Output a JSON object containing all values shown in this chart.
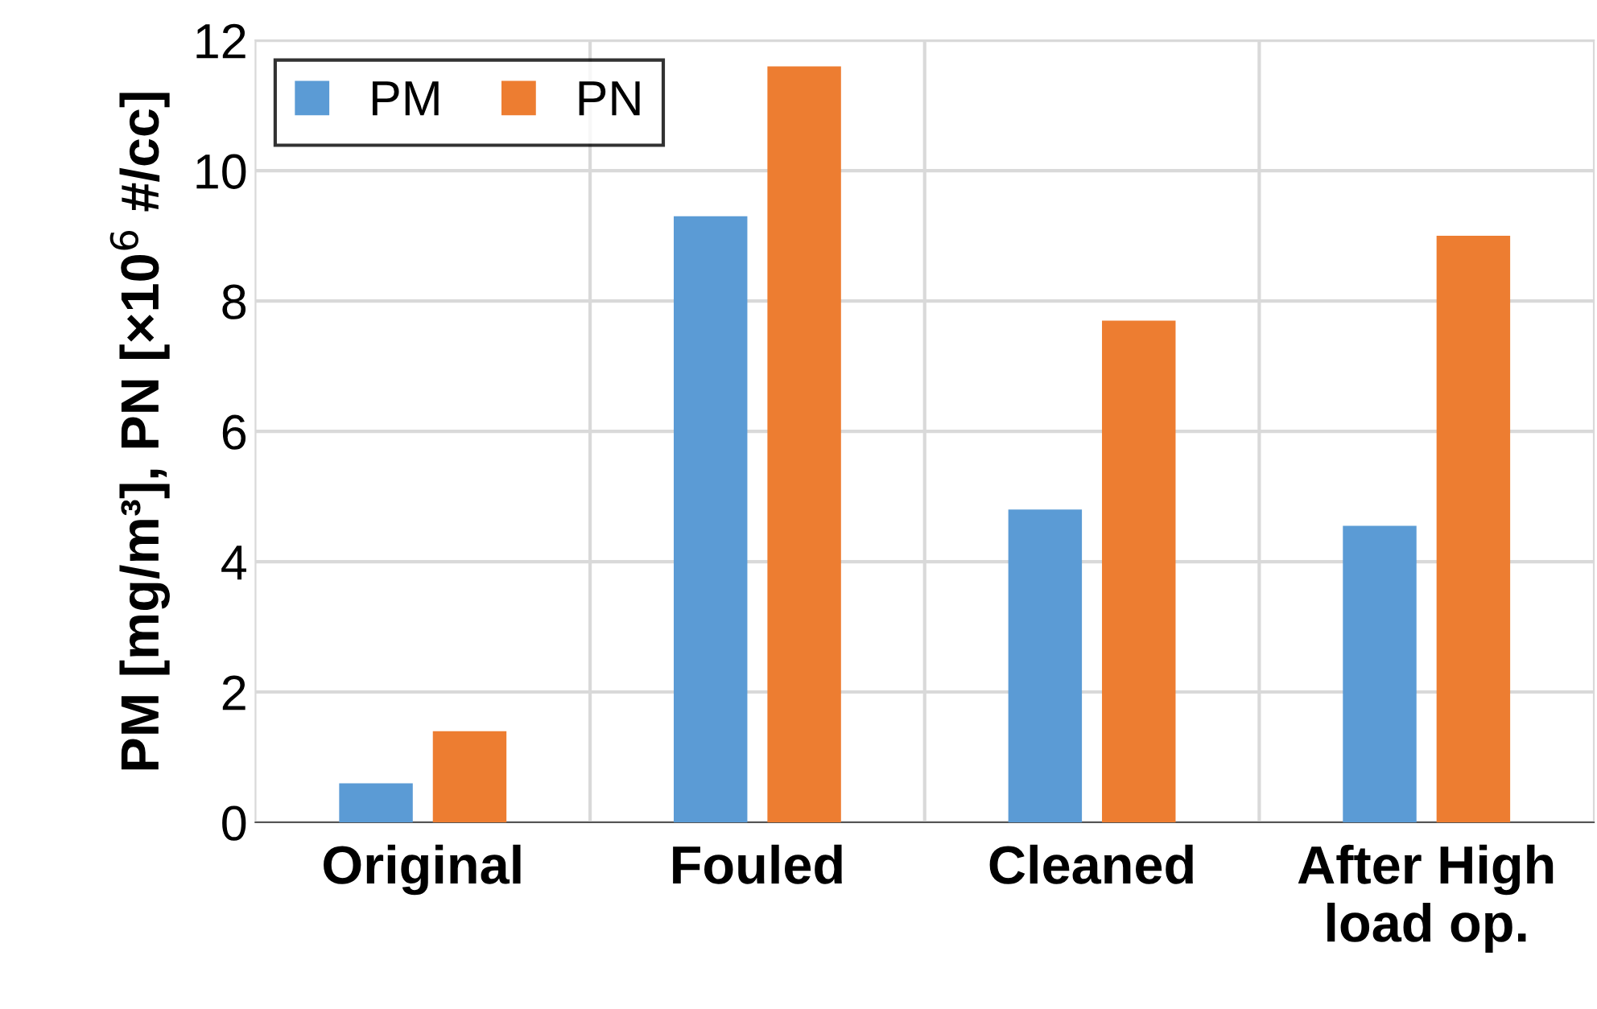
{
  "chart_data": {
    "type": "bar",
    "ylabel": "PM [mg/m³], PN [×10$^{6}$ #/cc]",
    "categories": [
      "Original",
      "Fouled",
      "Cleaned",
      "After High\nload op."
    ],
    "series": [
      {
        "name": "PM",
        "color": "#5b9bd5",
        "values": [
          0.6,
          9.3,
          4.8,
          4.55
        ]
      },
      {
        "name": "PN",
        "color": "#ed7d31",
        "values": [
          1.4,
          11.6,
          7.7,
          9.0
        ]
      }
    ],
    "ylim": [
      0,
      12
    ],
    "yticks": [
      0,
      2,
      4,
      6,
      8,
      10,
      12
    ],
    "grid": true,
    "legend": "top left"
  }
}
